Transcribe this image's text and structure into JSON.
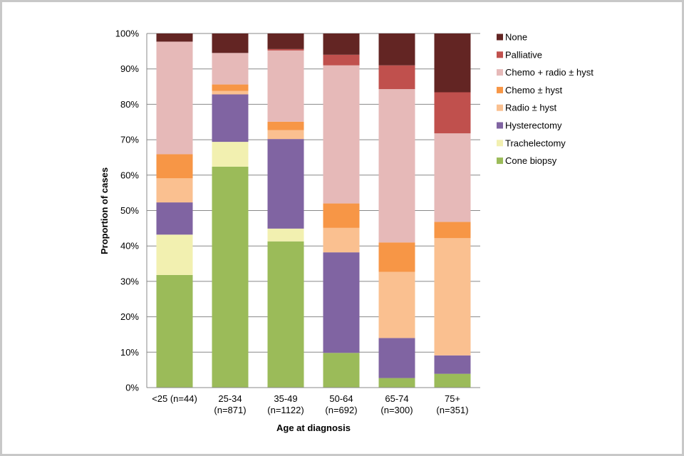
{
  "chart_data": {
    "type": "bar",
    "stacked": true,
    "normalized": true,
    "title": "",
    "xlabel": "Age at diagnosis",
    "ylabel": "Proportion of cases",
    "ylim": [
      0,
      100
    ],
    "yticks": [
      "0%",
      "10%",
      "20%",
      "30%",
      "40%",
      "50%",
      "60%",
      "70%",
      "80%",
      "90%",
      "100%"
    ],
    "grid": true,
    "legend_position": "right",
    "categories": [
      [
        "<25  (n=44)"
      ],
      [
        "25-34",
        "(n=871)"
      ],
      [
        "35-49",
        "(n=1122)"
      ],
      [
        "50-64",
        "(n=692)"
      ],
      [
        "65-74",
        "(n=300)"
      ],
      [
        "75+",
        "(n=351)"
      ]
    ],
    "series": [
      {
        "name": "Cone biopsy",
        "color": "#9bbb59",
        "values": [
          31.8,
          62.4,
          41.3,
          9.8,
          2.7,
          3.9
        ]
      },
      {
        "name": "Trachelectomy",
        "color": "#f2f0b0",
        "values": [
          11.4,
          7.0,
          3.6,
          0,
          0,
          0
        ]
      },
      {
        "name": "Hysterectomy",
        "color": "#8064a2",
        "values": [
          9.1,
          13.4,
          25.3,
          28.4,
          11.3,
          5.2
        ]
      },
      {
        "name": "Radio ± hyst",
        "color": "#fac090",
        "values": [
          6.8,
          1.0,
          2.5,
          6.9,
          18.7,
          33.1
        ]
      },
      {
        "name": "Chemo ± hyst",
        "color": "#f79646",
        "values": [
          6.8,
          1.8,
          2.4,
          6.9,
          8.3,
          4.6
        ]
      },
      {
        "name": "Chemo + radio ± hyst",
        "color": "#e6b9b8",
        "values": [
          31.8,
          8.9,
          20.1,
          39.0,
          43.3,
          25.0
        ]
      },
      {
        "name": "Palliative",
        "color": "#c0504d",
        "values": [
          0,
          0,
          0.4,
          3.0,
          6.7,
          11.6
        ]
      },
      {
        "name": "None",
        "color": "#632523",
        "values": [
          2.3,
          5.5,
          4.4,
          6.0,
          9.0,
          16.6
        ]
      }
    ]
  }
}
